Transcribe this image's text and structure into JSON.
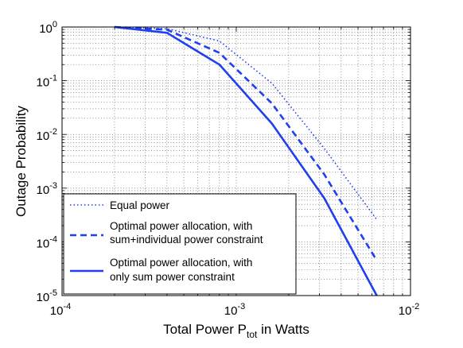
{
  "chart_data": {
    "type": "line",
    "xscale": "log",
    "yscale": "log",
    "xlim": [
      0.0001,
      0.01
    ],
    "ylim": [
      1e-05,
      1
    ],
    "xlabel_main": "Total Power P",
    "xlabel_sub": "tot",
    "xlabel_tail": " in Watts",
    "ylabel": "Outage Probability",
    "grid": true,
    "legend_position": "bottom-left",
    "line_color": "#1f3ff0",
    "x_ticks": [
      {
        "base": "10",
        "exp": "-4",
        "value": 0.0001
      },
      {
        "base": "10",
        "exp": "-3",
        "value": 0.001
      },
      {
        "base": "10",
        "exp": "-2",
        "value": 0.01
      }
    ],
    "y_ticks": [
      {
        "base": "10",
        "exp": "0",
        "value": 1
      },
      {
        "base": "10",
        "exp": "-1",
        "value": 0.1
      },
      {
        "base": "10",
        "exp": "-2",
        "value": 0.01
      },
      {
        "base": "10",
        "exp": "-3",
        "value": 0.001
      },
      {
        "base": "10",
        "exp": "-4",
        "value": 0.0001
      },
      {
        "base": "10",
        "exp": "-5",
        "value": 1e-05
      }
    ],
    "series": [
      {
        "style": "dotted",
        "legend": [
          "Equal power"
        ],
        "x": [
          0.0002,
          0.0004,
          0.0008,
          0.0016,
          0.0032,
          0.0064
        ],
        "y": [
          1.0,
          0.93,
          0.55,
          0.09,
          0.0055,
          0.00026
        ]
      },
      {
        "style": "dashed",
        "legend": [
          "Optimal power allocation, with",
          "sum+individual power constraint"
        ],
        "x": [
          0.0002,
          0.0004,
          0.0008,
          0.0016,
          0.0032,
          0.0064
        ],
        "y": [
          1.0,
          0.89,
          0.33,
          0.038,
          0.0018,
          4.5e-05
        ]
      },
      {
        "style": "solid",
        "legend": [
          "Optimal power allocation, with",
          "only sum power constraint"
        ],
        "x": [
          0.0002,
          0.0004,
          0.0008,
          0.0016,
          0.0032,
          0.0064
        ],
        "y": [
          1.0,
          0.78,
          0.2,
          0.016,
          0.00065,
          1e-05
        ]
      }
    ]
  }
}
